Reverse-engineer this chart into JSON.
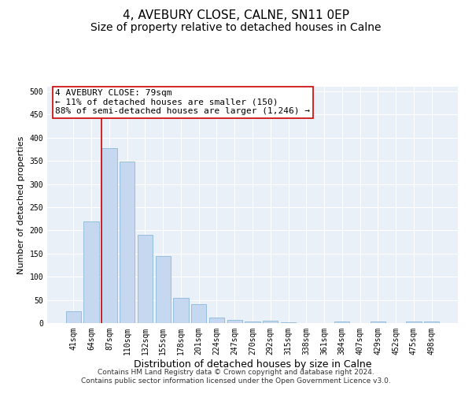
{
  "title": "4, AVEBURY CLOSE, CALNE, SN11 0EP",
  "subtitle": "Size of property relative to detached houses in Calne",
  "xlabel": "Distribution of detached houses by size in Calne",
  "ylabel": "Number of detached properties",
  "categories": [
    "41sqm",
    "64sqm",
    "87sqm",
    "110sqm",
    "132sqm",
    "155sqm",
    "178sqm",
    "201sqm",
    "224sqm",
    "247sqm",
    "270sqm",
    "292sqm",
    "315sqm",
    "338sqm",
    "361sqm",
    "384sqm",
    "407sqm",
    "429sqm",
    "452sqm",
    "475sqm",
    "498sqm"
  ],
  "values": [
    25,
    220,
    378,
    348,
    190,
    145,
    54,
    40,
    12,
    7,
    3,
    5,
    1,
    0,
    0,
    4,
    0,
    4,
    0,
    4,
    3
  ],
  "bar_color": "#c5d8ef",
  "bar_edge_color": "#7bafd4",
  "vline_color": "#cc0000",
  "annotation_line0": "4 AVEBURY CLOSE: 79sqm",
  "annotation_line1": "← 11% of detached houses are smaller (150)",
  "annotation_line2": "88% of semi-detached houses are larger (1,246) →",
  "annotation_box_color": "#ffffff",
  "annotation_box_edge": "#cc0000",
  "ylim": [
    0,
    510
  ],
  "yticks": [
    0,
    50,
    100,
    150,
    200,
    250,
    300,
    350,
    400,
    450,
    500
  ],
  "bg_color": "#eaf0f8",
  "footer1": "Contains HM Land Registry data © Crown copyright and database right 2024.",
  "footer2": "Contains public sector information licensed under the Open Government Licence v3.0.",
  "title_fontsize": 11,
  "subtitle_fontsize": 10,
  "xlabel_fontsize": 9,
  "ylabel_fontsize": 8,
  "tick_fontsize": 7,
  "annotation_fontsize": 8,
  "footer_fontsize": 6.5
}
